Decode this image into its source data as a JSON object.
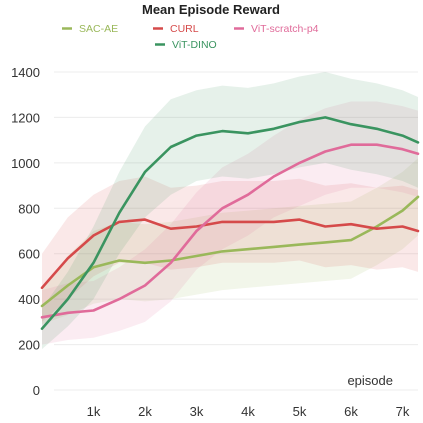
{
  "chart_data": {
    "type": "line",
    "title": "Mean Episode Reward",
    "xlabel": "episode",
    "ylabel": "",
    "xlim": [
      0,
      7300
    ],
    "ylim": [
      0,
      1400
    ],
    "x_ticks": [
      1000,
      2000,
      3000,
      4000,
      5000,
      6000,
      7000
    ],
    "x_tick_labels": [
      "1k",
      "2k",
      "3k",
      "4k",
      "5k",
      "6k",
      "7k"
    ],
    "y_ticks": [
      0,
      200,
      400,
      600,
      800,
      1000,
      1200,
      1400
    ],
    "y_tick_labels": [
      "0",
      "200",
      "400",
      "600",
      "800",
      "1000",
      "1200",
      "1400"
    ],
    "grid": true,
    "shaded_std_bands": true,
    "legend_position": "top",
    "series": [
      {
        "name": "SAC-AE",
        "color": "#9ab85a",
        "x": [
          0,
          500,
          1000,
          1500,
          2000,
          2500,
          3000,
          3500,
          4000,
          4500,
          5000,
          5500,
          6000,
          6500,
          7000,
          7300
        ],
        "values": [
          370,
          460,
          540,
          570,
          560,
          570,
          590,
          610,
          620,
          630,
          640,
          650,
          660,
          720,
          790,
          850
        ],
        "band": [
          [
            290,
            450
          ],
          [
            330,
            590
          ],
          [
            380,
            700
          ],
          [
            400,
            740
          ],
          [
            390,
            730
          ],
          [
            400,
            740
          ],
          [
            420,
            760
          ],
          [
            440,
            780
          ],
          [
            450,
            790
          ],
          [
            460,
            800
          ],
          [
            470,
            810
          ],
          [
            480,
            820
          ],
          [
            490,
            830
          ],
          [
            550,
            890
          ],
          [
            620,
            960
          ],
          [
            680,
            1020
          ]
        ]
      },
      {
        "name": "CURL",
        "color": "#d54a4a",
        "x": [
          0,
          500,
          1000,
          1500,
          2000,
          2500,
          3000,
          3500,
          4000,
          4500,
          5000,
          5500,
          6000,
          6500,
          7000,
          7300
        ],
        "values": [
          450,
          580,
          680,
          740,
          750,
          710,
          720,
          740,
          740,
          740,
          750,
          720,
          730,
          710,
          720,
          700
        ],
        "band": [
          [
            300,
            600
          ],
          [
            400,
            760
          ],
          [
            500,
            860
          ],
          [
            560,
            920
          ],
          [
            560,
            940
          ],
          [
            530,
            890
          ],
          [
            540,
            900
          ],
          [
            560,
            920
          ],
          [
            560,
            920
          ],
          [
            560,
            920
          ],
          [
            570,
            930
          ],
          [
            540,
            900
          ],
          [
            550,
            910
          ],
          [
            530,
            890
          ],
          [
            540,
            900
          ],
          [
            520,
            880
          ]
        ]
      },
      {
        "name": "ViT-scratch-p4",
        "color": "#e06b9a",
        "x": [
          0,
          500,
          1000,
          1500,
          2000,
          2500,
          3000,
          3500,
          4000,
          4500,
          5000,
          5500,
          6000,
          6500,
          7000,
          7300
        ],
        "values": [
          320,
          340,
          350,
          400,
          460,
          560,
          700,
          800,
          860,
          940,
          1000,
          1050,
          1080,
          1080,
          1060,
          1040
        ],
        "band": [
          [
            200,
            440
          ],
          [
            220,
            470
          ],
          [
            230,
            480
          ],
          [
            260,
            540
          ],
          [
            300,
            620
          ],
          [
            390,
            730
          ],
          [
            530,
            870
          ],
          [
            620,
            980
          ],
          [
            680,
            1040
          ],
          [
            760,
            1120
          ],
          [
            810,
            1190
          ],
          [
            860,
            1240
          ],
          [
            890,
            1270
          ],
          [
            890,
            1270
          ],
          [
            870,
            1250
          ],
          [
            850,
            1230
          ]
        ]
      },
      {
        "name": "ViT-DINO",
        "color": "#3a9460",
        "x": [
          0,
          500,
          1000,
          1500,
          2000,
          2500,
          3000,
          3500,
          4000,
          4500,
          5000,
          5500,
          6000,
          6500,
          7000,
          7300
        ],
        "values": [
          270,
          400,
          560,
          780,
          960,
          1070,
          1120,
          1140,
          1130,
          1150,
          1180,
          1200,
          1170,
          1150,
          1120,
          1090
        ],
        "band": [
          [
            180,
            360
          ],
          [
            280,
            520
          ],
          [
            400,
            720
          ],
          [
            600,
            960
          ],
          [
            760,
            1160
          ],
          [
            860,
            1280
          ],
          [
            920,
            1320
          ],
          [
            940,
            1340
          ],
          [
            930,
            1330
          ],
          [
            950,
            1350
          ],
          [
            980,
            1380
          ],
          [
            1000,
            1400
          ],
          [
            970,
            1370
          ],
          [
            950,
            1350
          ],
          [
            920,
            1320
          ],
          [
            890,
            1290
          ]
        ]
      }
    ]
  }
}
